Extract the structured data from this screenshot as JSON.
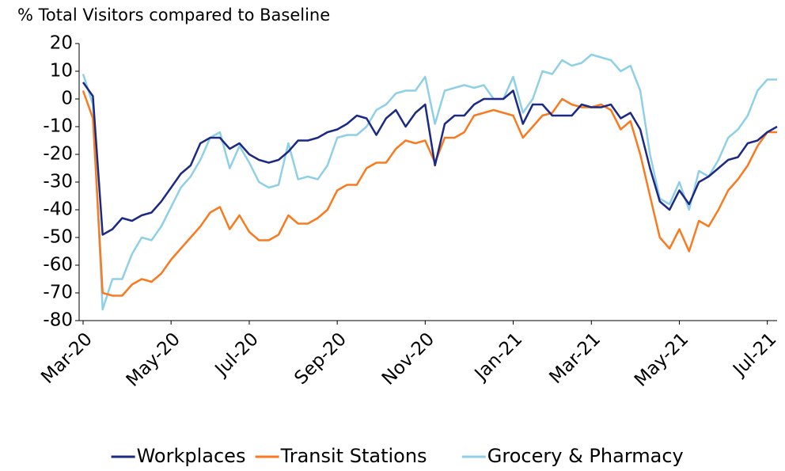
{
  "chart_data": {
    "type": "line",
    "title": "% Total Visitors compared to Baseline",
    "categories": [
      "Mar-20",
      null,
      null,
      null,
      null,
      null,
      null,
      null,
      null,
      "May-20",
      null,
      null,
      null,
      null,
      null,
      null,
      null,
      "Jul-20",
      null,
      null,
      null,
      null,
      null,
      null,
      null,
      null,
      "Sep-20",
      null,
      null,
      null,
      null,
      null,
      null,
      null,
      null,
      "Nov-20",
      null,
      null,
      null,
      null,
      null,
      null,
      null,
      null,
      "Jan-21",
      null,
      null,
      null,
      null,
      null,
      null,
      null,
      "Mar-21",
      null,
      null,
      null,
      null,
      null,
      null,
      null,
      null,
      "May-21",
      null,
      null,
      null,
      null,
      null,
      null,
      null,
      null,
      "Jul-21",
      null
    ],
    "series": [
      {
        "name": "Workplaces",
        "color": "#1c2a84",
        "values": [
          6,
          1,
          -49,
          -47,
          -43,
          -44,
          -42,
          -41,
          -37,
          -32,
          -27,
          -24,
          -16,
          -14,
          -14,
          -18,
          -16,
          -20,
          -22,
          -23,
          -22,
          -19,
          -15,
          -15,
          -14,
          -12,
          -11,
          -9,
          -6,
          -7,
          -13,
          -7,
          -4,
          -10,
          -5,
          -2,
          -24,
          -9,
          -6,
          -6,
          -2,
          0,
          0,
          0,
          3,
          -9,
          -2,
          -2,
          -6,
          -6,
          -6,
          -2,
          -3,
          -3,
          -2,
          -7,
          -5,
          -11,
          -25,
          -37,
          -40,
          -33,
          -38,
          -30,
          -28,
          -25,
          -22,
          -21,
          -16,
          -15,
          -12,
          -10
        ]
      },
      {
        "name": "Transit Stations",
        "color": "#f97a1f",
        "values": [
          3,
          -7,
          -70,
          -71,
          -71,
          -67,
          -65,
          -66,
          -63,
          -58,
          -54,
          -50,
          -46,
          -41,
          -39,
          -47,
          -42,
          -48,
          -51,
          -51,
          -49,
          -42,
          -45,
          -45,
          -43,
          -40,
          -33,
          -31,
          -31,
          -25,
          -23,
          -23,
          -18,
          -15,
          -16,
          -15,
          -23,
          -14,
          -14,
          -12,
          -6,
          -5,
          -4,
          -5,
          -6,
          -14,
          -10,
          -6,
          -5,
          0,
          -2,
          -3,
          -3,
          -2,
          -4,
          -11,
          -8,
          -20,
          -35,
          -50,
          -54,
          -47,
          -55,
          -44,
          -46,
          -40,
          -33,
          -29,
          -24,
          -17,
          -12,
          -12
        ]
      },
      {
        "name": "Grocery & Pharmacy",
        "color": "#8fd0e6",
        "values": [
          9,
          -2,
          -76,
          -65,
          -65,
          -56,
          -50,
          -51,
          -46,
          -39,
          -32,
          -28,
          -22,
          -14,
          -12,
          -25,
          -17,
          -23,
          -30,
          -32,
          -31,
          -16,
          -29,
          -28,
          -29,
          -24,
          -14,
          -13,
          -13,
          -10,
          -4,
          -2,
          2,
          3,
          3,
          8,
          -9,
          3,
          4,
          5,
          4,
          5,
          0,
          0,
          8,
          -5,
          0,
          10,
          9,
          14,
          12,
          13,
          16,
          15,
          14,
          10,
          12,
          3,
          -20,
          -36,
          -38,
          -30,
          -40,
          -26,
          -28,
          -22,
          -14,
          -11,
          -6,
          3,
          7,
          7
        ]
      }
    ],
    "ylim": [
      -80,
      20
    ],
    "yticks": [
      -80,
      -70,
      -60,
      -50,
      -40,
      -30,
      -20,
      -10,
      0,
      10,
      20
    ],
    "grid": false,
    "legend": "bottom"
  }
}
